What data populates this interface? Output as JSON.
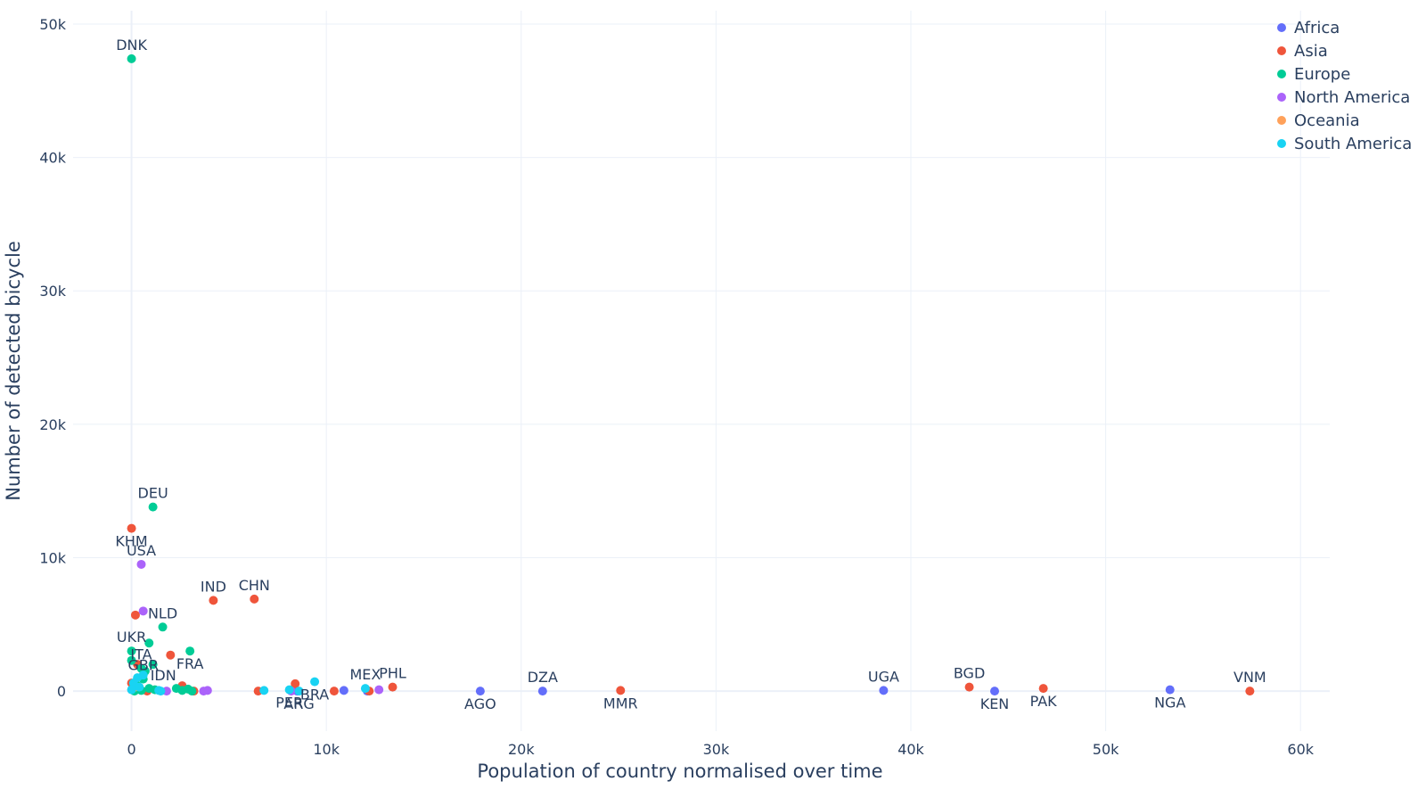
{
  "chart_data": {
    "type": "scatter",
    "xlabel": "Population of country normalised over time",
    "ylabel": "Number of detected bicycle",
    "xlim": [
      -3000,
      61500
    ],
    "ylim": [
      -3000,
      51000
    ],
    "x_ticks": [
      0,
      10000,
      20000,
      30000,
      40000,
      50000,
      60000
    ],
    "x_tick_labels": [
      "0",
      "10k",
      "20k",
      "30k",
      "40k",
      "50k",
      "60k"
    ],
    "y_ticks": [
      0,
      10000,
      20000,
      30000,
      40000,
      50000
    ],
    "y_tick_labels": [
      "0",
      "10k",
      "20k",
      "30k",
      "40k",
      "50k"
    ],
    "grid": true,
    "legend_position": "top-right",
    "colors": {
      "Africa": "#636efa",
      "Asia": "#ef553b",
      "Europe": "#00cc96",
      "North America": "#ab63fa",
      "Oceania": "#ffa15a",
      "South America": "#19d3f3"
    },
    "series": [
      {
        "name": "Africa",
        "points": [
          {
            "x": 53300,
            "y": 100,
            "label": "NGA",
            "label_pos": "below"
          },
          {
            "x": 44300,
            "y": 0,
            "label": "KEN",
            "label_pos": "below"
          },
          {
            "x": 38600,
            "y": 50,
            "label": "UGA",
            "label_pos": "above"
          },
          {
            "x": 21100,
            "y": 0,
            "label": "DZA",
            "label_pos": "above"
          },
          {
            "x": 17900,
            "y": 0,
            "label": "AGO",
            "label_pos": "below"
          },
          {
            "x": 10900,
            "y": 50
          },
          {
            "x": 12100,
            "y": 0
          },
          {
            "x": 8500,
            "y": 0
          }
        ]
      },
      {
        "name": "Asia",
        "points": [
          {
            "x": 57400,
            "y": 0,
            "label": "VNM",
            "label_pos": "above"
          },
          {
            "x": 46800,
            "y": 200,
            "label": "PAK",
            "label_pos": "below"
          },
          {
            "x": 43000,
            "y": 300,
            "label": "BGD",
            "label_pos": "above"
          },
          {
            "x": 25100,
            "y": 50,
            "label": "MMR",
            "label_pos": "below"
          },
          {
            "x": 13400,
            "y": 300,
            "label": "PHL",
            "label_pos": "above"
          },
          {
            "x": 6300,
            "y": 6900,
            "label": "CHN",
            "label_pos": "above"
          },
          {
            "x": 4200,
            "y": 6800,
            "label": "IND",
            "label_pos": "above"
          },
          {
            "x": 0,
            "y": 12200,
            "label": "KHM",
            "label_pos": "below"
          },
          {
            "x": 200,
            "y": 5700
          },
          {
            "x": 2000,
            "y": 2700
          },
          {
            "x": 8400,
            "y": 550
          },
          {
            "x": 10400,
            "y": 0
          },
          {
            "x": 12200,
            "y": 0
          },
          {
            "x": 6500,
            "y": 0
          },
          {
            "x": 3200,
            "y": 0
          },
          {
            "x": 2600,
            "y": 400
          },
          {
            "x": 300,
            "y": 2000
          },
          {
            "x": 0,
            "y": 600
          },
          {
            "x": 800,
            "y": 0
          }
        ]
      },
      {
        "name": "Europe",
        "points": [
          {
            "x": 0,
            "y": 47400,
            "label": "DNK",
            "label_pos": "above"
          },
          {
            "x": 1100,
            "y": 13800,
            "label": "DEU",
            "label_pos": "above"
          },
          {
            "x": 1600,
            "y": 4800,
            "label": "NLD",
            "label_pos": "above"
          },
          {
            "x": 900,
            "y": 3600
          },
          {
            "x": 0,
            "y": 3000,
            "label": "UKR",
            "label_pos": "above"
          },
          {
            "x": 3000,
            "y": 3000,
            "label": "FRA",
            "label_pos": "below"
          },
          {
            "x": 0,
            "y": 2300
          },
          {
            "x": 500,
            "y": 1700,
            "label": "ITA",
            "label_pos": "above"
          },
          {
            "x": 1100,
            "y": 2000
          },
          {
            "x": 700,
            "y": 1500
          },
          {
            "x": 600,
            "y": 900,
            "label": "GBR",
            "label_pos": "above"
          },
          {
            "x": 300,
            "y": 400
          },
          {
            "x": 900,
            "y": 200
          },
          {
            "x": 1200,
            "y": 100
          },
          {
            "x": 2300,
            "y": 200
          },
          {
            "x": 2600,
            "y": 50
          },
          {
            "x": 2900,
            "y": 150
          },
          {
            "x": 3100,
            "y": 0
          },
          {
            "x": 150,
            "y": 0
          },
          {
            "x": 500,
            "y": 50
          }
        ]
      },
      {
        "name": "North America",
        "points": [
          {
            "x": 500,
            "y": 9500,
            "label": "USA",
            "label_pos": "above"
          },
          {
            "x": 600,
            "y": 6000
          },
          {
            "x": 12700,
            "y": 100
          },
          {
            "x": 3700,
            "y": 0
          },
          {
            "x": 3900,
            "y": 50
          },
          {
            "x": 1800,
            "y": 0
          },
          {
            "x": 8200,
            "y": 0
          }
        ]
      },
      {
        "name": "Oceania",
        "points": [
          {
            "x": 200,
            "y": 300
          }
        ]
      },
      {
        "name": "South America",
        "points": [
          {
            "x": 9400,
            "y": 700,
            "label": "BRA",
            "label_pos": "below"
          },
          {
            "x": 8100,
            "y": 100,
            "label": "PER",
            "label_pos": "below"
          },
          {
            "x": 8600,
            "y": 0,
            "label": "ARG",
            "label_pos": "below"
          },
          {
            "x": 12000,
            "y": 200,
            "label": "MEX",
            "label_pos": "above"
          },
          {
            "x": 6800,
            "y": 50
          },
          {
            "x": 1500,
            "y": 0
          },
          {
            "x": 600,
            "y": 1200,
            "label": "IDN",
            "label_pos": "right"
          },
          {
            "x": 100,
            "y": 600
          },
          {
            "x": 400,
            "y": 300
          },
          {
            "x": 0,
            "y": 100
          },
          {
            "x": 1400,
            "y": 50
          },
          {
            "x": 300,
            "y": 1000
          }
        ]
      }
    ]
  }
}
